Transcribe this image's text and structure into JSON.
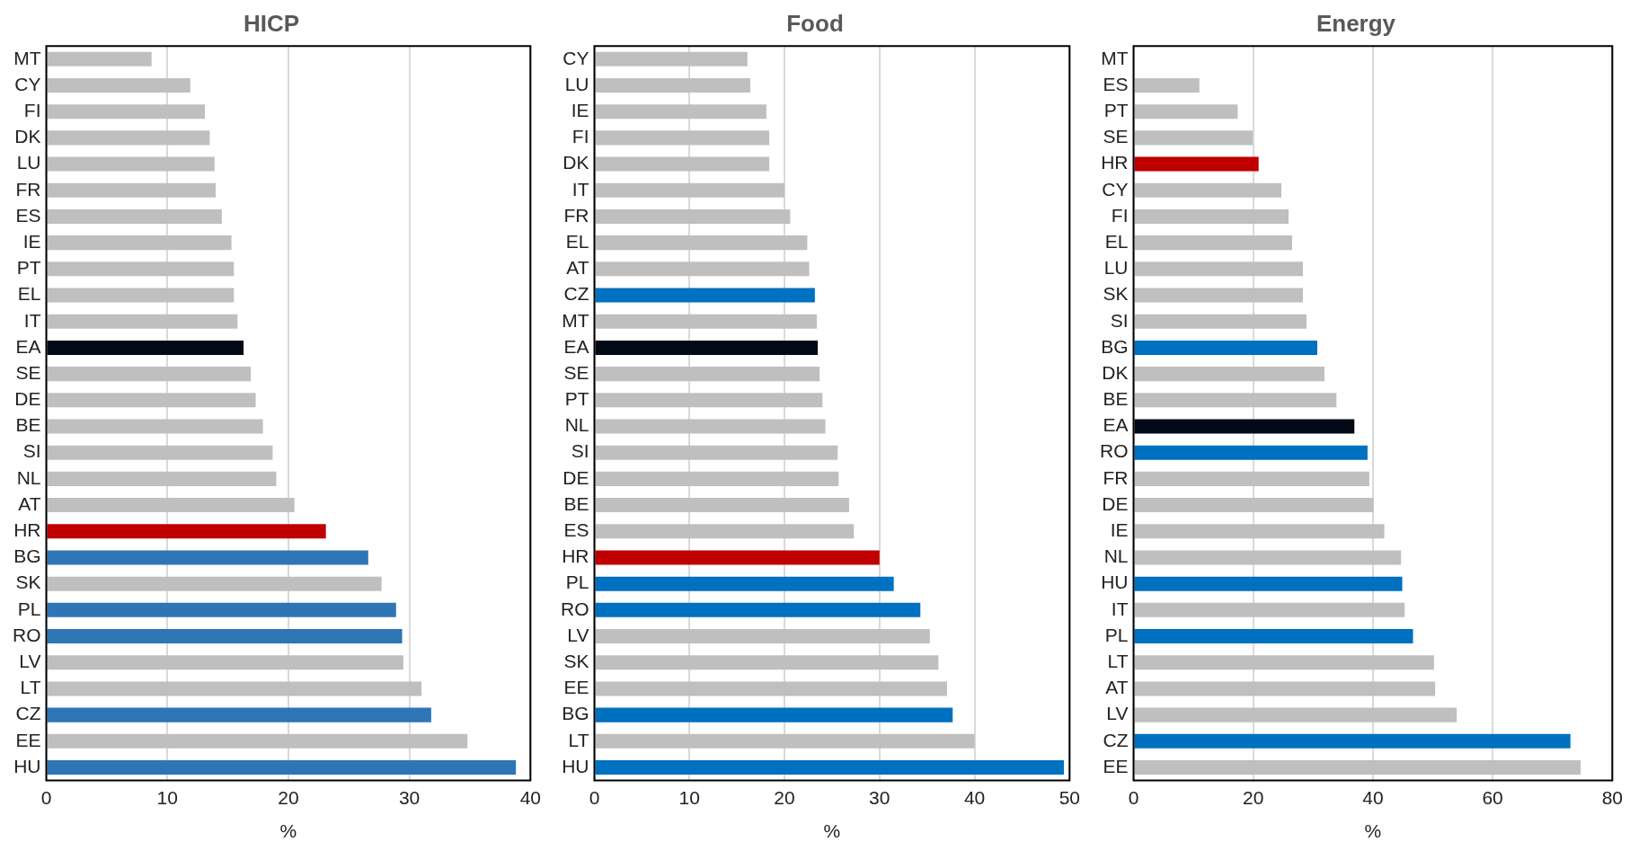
{
  "chart_data": [
    {
      "type": "bar",
      "orientation": "horizontal",
      "title": "HICP",
      "xlabel": "%",
      "grid": "x",
      "categories": [
        "MT",
        "CY",
        "FI",
        "DK",
        "LU",
        "FR",
        "ES",
        "IE",
        "PT",
        "EL",
        "IT",
        "EA",
        "SE",
        "DE",
        "BE",
        "SI",
        "NL",
        "AT",
        "HR",
        "BG",
        "SK",
        "PL",
        "RO",
        "LV",
        "LT",
        "CZ",
        "EE",
        "HU"
      ],
      "values": [
        8.7,
        11.9,
        13.1,
        13.5,
        13.9,
        14.0,
        14.5,
        15.3,
        15.5,
        15.5,
        15.8,
        16.3,
        16.9,
        17.3,
        17.9,
        18.7,
        19.0,
        20.5,
        23.1,
        26.6,
        27.7,
        28.9,
        29.4,
        29.5,
        31.0,
        31.8,
        34.8,
        38.8
      ],
      "colors": [
        "#bfbfbf",
        "#bfbfbf",
        "#bfbfbf",
        "#bfbfbf",
        "#bfbfbf",
        "#bfbfbf",
        "#bfbfbf",
        "#bfbfbf",
        "#bfbfbf",
        "#bfbfbf",
        "#bfbfbf",
        "#020a17",
        "#bfbfbf",
        "#bfbfbf",
        "#bfbfbf",
        "#bfbfbf",
        "#bfbfbf",
        "#bfbfbf",
        "#c00000",
        "#2e75b6",
        "#bfbfbf",
        "#2e75b6",
        "#2e75b6",
        "#bfbfbf",
        "#bfbfbf",
        "#2e75b6",
        "#bfbfbf",
        "#2e75b6"
      ],
      "xlim": [
        0,
        40
      ],
      "xticks": [
        0,
        10,
        20,
        30,
        40
      ]
    },
    {
      "type": "bar",
      "orientation": "horizontal",
      "title": "Food",
      "xlabel": "%",
      "grid": "x",
      "categories": [
        "CY",
        "LU",
        "IE",
        "FI",
        "DK",
        "IT",
        "FR",
        "EL",
        "AT",
        "CZ",
        "MT",
        "EA",
        "SE",
        "PT",
        "NL",
        "SI",
        "DE",
        "BE",
        "ES",
        "HR",
        "PL",
        "RO",
        "LV",
        "SK",
        "EE",
        "BG",
        "LT",
        "HU"
      ],
      "values": [
        16.1,
        16.4,
        18.1,
        18.4,
        18.4,
        20.0,
        20.6,
        22.4,
        22.6,
        23.2,
        23.4,
        23.5,
        23.7,
        24.0,
        24.3,
        25.6,
        25.7,
        26.8,
        27.3,
        30.0,
        31.5,
        34.3,
        35.3,
        36.2,
        37.1,
        37.7,
        40.0,
        49.4
      ],
      "colors": [
        "#bfbfbf",
        "#bfbfbf",
        "#bfbfbf",
        "#bfbfbf",
        "#bfbfbf",
        "#bfbfbf",
        "#bfbfbf",
        "#bfbfbf",
        "#bfbfbf",
        "#0070c0",
        "#bfbfbf",
        "#020a17",
        "#bfbfbf",
        "#bfbfbf",
        "#bfbfbf",
        "#bfbfbf",
        "#bfbfbf",
        "#bfbfbf",
        "#bfbfbf",
        "#c00000",
        "#0070c0",
        "#0070c0",
        "#bfbfbf",
        "#bfbfbf",
        "#bfbfbf",
        "#0070c0",
        "#bfbfbf",
        "#0070c0"
      ],
      "xlim": [
        0,
        50
      ],
      "xticks": [
        0,
        10,
        20,
        30,
        40,
        50
      ]
    },
    {
      "type": "bar",
      "orientation": "horizontal",
      "title": "Energy",
      "xlabel": "%",
      "grid": "x",
      "categories": [
        "MT",
        "ES",
        "PT",
        "SE",
        "HR",
        "CY",
        "FI",
        "EL",
        "LU",
        "SK",
        "SI",
        "BG",
        "DK",
        "BE",
        "EA",
        "RO",
        "FR",
        "DE",
        "IE",
        "NL",
        "HU",
        "IT",
        "PL",
        "LT",
        "AT",
        "LV",
        "CZ",
        "EE"
      ],
      "values": [
        null,
        11.0,
        17.4,
        19.9,
        20.9,
        24.7,
        25.9,
        26.5,
        28.3,
        28.3,
        28.9,
        30.7,
        31.9,
        33.9,
        36.9,
        39.1,
        39.4,
        40.1,
        41.9,
        44.7,
        44.9,
        45.3,
        46.7,
        50.2,
        50.4,
        54.0,
        73.0,
        74.7
      ],
      "colors": [
        "#bfbfbf",
        "#bfbfbf",
        "#bfbfbf",
        "#bfbfbf",
        "#c00000",
        "#bfbfbf",
        "#bfbfbf",
        "#bfbfbf",
        "#bfbfbf",
        "#bfbfbf",
        "#bfbfbf",
        "#0070c0",
        "#bfbfbf",
        "#bfbfbf",
        "#020a17",
        "#0070c0",
        "#bfbfbf",
        "#bfbfbf",
        "#bfbfbf",
        "#bfbfbf",
        "#0070c0",
        "#bfbfbf",
        "#0070c0",
        "#bfbfbf",
        "#bfbfbf",
        "#bfbfbf",
        "#0070c0",
        "#bfbfbf"
      ],
      "xlim": [
        0,
        80
      ],
      "xticks": [
        0,
        20,
        40,
        60,
        80
      ]
    }
  ]
}
